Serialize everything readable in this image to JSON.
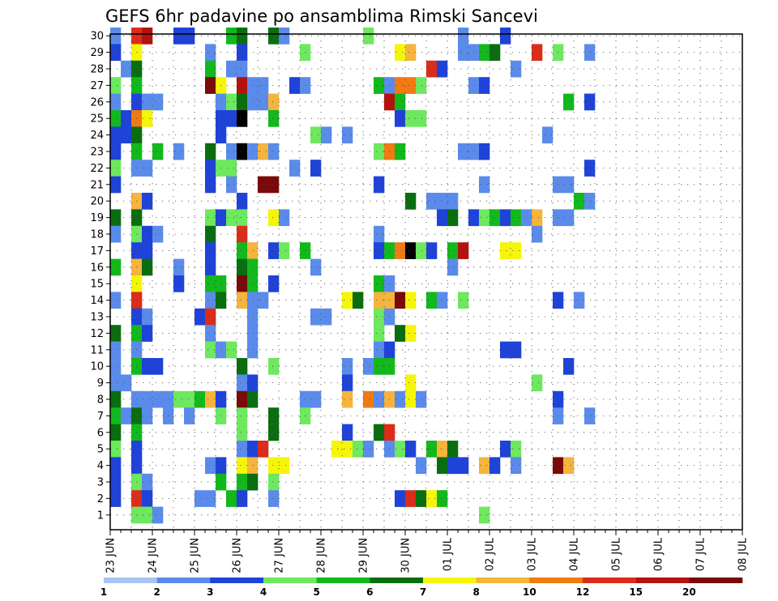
{
  "chart_data": {
    "type": "heatmap",
    "title": "GEFS 6hr padavine po ansamblima Rimski Sancevi",
    "xlabel": "",
    "ylabel": "",
    "y_ticks": [
      "1",
      "2",
      "3",
      "4",
      "5",
      "6",
      "7",
      "8",
      "9",
      "10",
      "11",
      "12",
      "13",
      "14",
      "15",
      "16",
      "17",
      "18",
      "19",
      "20",
      "21",
      "22",
      "23",
      "24",
      "25",
      "26",
      "27",
      "28",
      "29",
      "30"
    ],
    "x_ticks": [
      "23 JUN",
      "24 JUN",
      "25 JUN",
      "26 JUN",
      "27 JUN",
      "28 JUN",
      "29 JUN",
      "30 JUN",
      "01 JUL",
      "02 JUL",
      "03 JUL",
      "04 JUL",
      "05 JUL",
      "06 JUL",
      "07 JUL",
      "08 JUL"
    ],
    "time_step": "6hr",
    "ensemble_members": 30,
    "grid": true,
    "legend_position": "bottom",
    "colorbar": {
      "labels": [
        "1",
        "2",
        "3",
        "4",
        "5",
        "6",
        "7",
        "8",
        "10",
        "12",
        "15",
        "20"
      ],
      "colors": [
        "#a9c4f2",
        "#5b8bea",
        "#1f43d8",
        "#6ee85e",
        "#12b81c",
        "#0a6e10",
        "#f5f50a",
        "#f5b43c",
        "#f07a14",
        "#dc2c1a",
        "#b4120e",
        "#7a0a0a"
      ]
    },
    "cells": [
      [
        30,
        0,
        1
      ],
      [
        30,
        2,
        9
      ],
      [
        30,
        3,
        10
      ],
      [
        30,
        6,
        2
      ],
      [
        30,
        7,
        2
      ],
      [
        30,
        11,
        4
      ],
      [
        30,
        12,
        5
      ],
      [
        30,
        15,
        5
      ],
      [
        30,
        16,
        1
      ],
      [
        30,
        24,
        3
      ],
      [
        30,
        33,
        1
      ],
      [
        30,
        37,
        2
      ],
      [
        29,
        0,
        2
      ],
      [
        29,
        2,
        6
      ],
      [
        29,
        9,
        1
      ],
      [
        29,
        12,
        2
      ],
      [
        29,
        18,
        3
      ],
      [
        29,
        27,
        6
      ],
      [
        29,
        28,
        7
      ],
      [
        29,
        33,
        1
      ],
      [
        29,
        34,
        1
      ],
      [
        29,
        35,
        4
      ],
      [
        29,
        36,
        5
      ],
      [
        29,
        40,
        9
      ],
      [
        29,
        42,
        3
      ],
      [
        29,
        45,
        1
      ],
      [
        28,
        1,
        1
      ],
      [
        28,
        2,
        5
      ],
      [
        28,
        9,
        4
      ],
      [
        28,
        11,
        1
      ],
      [
        28,
        12,
        1
      ],
      [
        28,
        30,
        9
      ],
      [
        28,
        31,
        2
      ],
      [
        28,
        38,
        1
      ],
      [
        27,
        0,
        3
      ],
      [
        27,
        2,
        4
      ],
      [
        27,
        9,
        11
      ],
      [
        27,
        10,
        6
      ],
      [
        27,
        12,
        10
      ],
      [
        27,
        13,
        1
      ],
      [
        27,
        14,
        1
      ],
      [
        27,
        17,
        2
      ],
      [
        27,
        18,
        1
      ],
      [
        27,
        25,
        4
      ],
      [
        27,
        26,
        1
      ],
      [
        27,
        27,
        8
      ],
      [
        27,
        28,
        8
      ],
      [
        27,
        29,
        3
      ],
      [
        27,
        34,
        1
      ],
      [
        27,
        35,
        2
      ],
      [
        26,
        0,
        1
      ],
      [
        26,
        2,
        2
      ],
      [
        26,
        3,
        1
      ],
      [
        26,
        4,
        1
      ],
      [
        26,
        10,
        1
      ],
      [
        26,
        11,
        3
      ],
      [
        26,
        12,
        5
      ],
      [
        26,
        13,
        1
      ],
      [
        26,
        14,
        1
      ],
      [
        26,
        15,
        7
      ],
      [
        26,
        26,
        10
      ],
      [
        26,
        27,
        4
      ],
      [
        26,
        43,
        4
      ],
      [
        26,
        45,
        2
      ],
      [
        25,
        0,
        4
      ],
      [
        25,
        1,
        2
      ],
      [
        25,
        2,
        8
      ],
      [
        25,
        3,
        6
      ],
      [
        25,
        10,
        2
      ],
      [
        25,
        11,
        2
      ],
      [
        25,
        12,
        12
      ],
      [
        25,
        15,
        4
      ],
      [
        25,
        27,
        2
      ],
      [
        25,
        28,
        3
      ],
      [
        25,
        29,
        3
      ],
      [
        24,
        0,
        2
      ],
      [
        24,
        1,
        2
      ],
      [
        24,
        2,
        5
      ],
      [
        24,
        10,
        2
      ],
      [
        24,
        19,
        3
      ],
      [
        24,
        20,
        1
      ],
      [
        24,
        22,
        1
      ],
      [
        24,
        41,
        1
      ],
      [
        23,
        0,
        2
      ],
      [
        23,
        2,
        4
      ],
      [
        23,
        4,
        4
      ],
      [
        23,
        6,
        1
      ],
      [
        23,
        9,
        5
      ],
      [
        23,
        11,
        1
      ],
      [
        23,
        12,
        12
      ],
      [
        23,
        13,
        1
      ],
      [
        23,
        14,
        7
      ],
      [
        23,
        15,
        1
      ],
      [
        23,
        25,
        3
      ],
      [
        23,
        26,
        8
      ],
      [
        23,
        27,
        4
      ],
      [
        23,
        33,
        1
      ],
      [
        23,
        34,
        1
      ],
      [
        23,
        35,
        2
      ],
      [
        22,
        0,
        3
      ],
      [
        22,
        2,
        1
      ],
      [
        22,
        3,
        1
      ],
      [
        22,
        9,
        2
      ],
      [
        22,
        10,
        3
      ],
      [
        22,
        11,
        3
      ],
      [
        22,
        17,
        1
      ],
      [
        22,
        19,
        2
      ],
      [
        22,
        45,
        2
      ],
      [
        21,
        0,
        2
      ],
      [
        21,
        9,
        2
      ],
      [
        21,
        11,
        1
      ],
      [
        21,
        14,
        11
      ],
      [
        21,
        15,
        11
      ],
      [
        21,
        25,
        2
      ],
      [
        21,
        35,
        1
      ],
      [
        21,
        42,
        1
      ],
      [
        21,
        43,
        1
      ],
      [
        20,
        2,
        7
      ],
      [
        20,
        3,
        2
      ],
      [
        20,
        12,
        2
      ],
      [
        20,
        28,
        5
      ],
      [
        20,
        30,
        1
      ],
      [
        20,
        31,
        1
      ],
      [
        20,
        32,
        1
      ],
      [
        20,
        44,
        4
      ],
      [
        20,
        45,
        1
      ],
      [
        19,
        0,
        5
      ],
      [
        19,
        2,
        5
      ],
      [
        19,
        9,
        3
      ],
      [
        19,
        10,
        2
      ],
      [
        19,
        11,
        3
      ],
      [
        19,
        12,
        3
      ],
      [
        19,
        15,
        6
      ],
      [
        19,
        16,
        1
      ],
      [
        19,
        31,
        2
      ],
      [
        19,
        32,
        5
      ],
      [
        19,
        34,
        2
      ],
      [
        19,
        35,
        3
      ],
      [
        19,
        36,
        4
      ],
      [
        19,
        37,
        2
      ],
      [
        19,
        38,
        4
      ],
      [
        19,
        39,
        1
      ],
      [
        19,
        40,
        7
      ],
      [
        19,
        42,
        1
      ],
      [
        19,
        43,
        1
      ],
      [
        18,
        0,
        1
      ],
      [
        18,
        2,
        3
      ],
      [
        18,
        3,
        2
      ],
      [
        18,
        4,
        1
      ],
      [
        18,
        9,
        5
      ],
      [
        18,
        12,
        9
      ],
      [
        18,
        25,
        1
      ],
      [
        18,
        40,
        1
      ],
      [
        17,
        2,
        2
      ],
      [
        17,
        3,
        2
      ],
      [
        17,
        9,
        2
      ],
      [
        17,
        12,
        4
      ],
      [
        17,
        13,
        7
      ],
      [
        17,
        15,
        2
      ],
      [
        17,
        16,
        3
      ],
      [
        17,
        18,
        4
      ],
      [
        17,
        25,
        2
      ],
      [
        17,
        26,
        4
      ],
      [
        17,
        27,
        8
      ],
      [
        17,
        28,
        12
      ],
      [
        17,
        29,
        3
      ],
      [
        17,
        30,
        2
      ],
      [
        17,
        32,
        4
      ],
      [
        17,
        33,
        10
      ],
      [
        17,
        37,
        6
      ],
      [
        17,
        38,
        6
      ],
      [
        16,
        0,
        4
      ],
      [
        16,
        2,
        7
      ],
      [
        16,
        3,
        5
      ],
      [
        16,
        6,
        1
      ],
      [
        16,
        9,
        2
      ],
      [
        16,
        12,
        5
      ],
      [
        16,
        13,
        4
      ],
      [
        16,
        19,
        1
      ],
      [
        16,
        32,
        1
      ],
      [
        15,
        2,
        6
      ],
      [
        15,
        6,
        2
      ],
      [
        15,
        9,
        4
      ],
      [
        15,
        10,
        4
      ],
      [
        15,
        12,
        11
      ],
      [
        15,
        13,
        4
      ],
      [
        15,
        15,
        2
      ],
      [
        15,
        25,
        4
      ],
      [
        15,
        26,
        1
      ],
      [
        14,
        0,
        1
      ],
      [
        14,
        2,
        9
      ],
      [
        14,
        9,
        1
      ],
      [
        14,
        10,
        5
      ],
      [
        14,
        12,
        7
      ],
      [
        14,
        13,
        1
      ],
      [
        14,
        14,
        1
      ],
      [
        14,
        22,
        6
      ],
      [
        14,
        23,
        5
      ],
      [
        14,
        25,
        7
      ],
      [
        14,
        26,
        7
      ],
      [
        14,
        27,
        11
      ],
      [
        14,
        28,
        6
      ],
      [
        14,
        30,
        4
      ],
      [
        14,
        31,
        1
      ],
      [
        14,
        33,
        3
      ],
      [
        14,
        42,
        2
      ],
      [
        14,
        44,
        1
      ],
      [
        13,
        2,
        2
      ],
      [
        13,
        3,
        1
      ],
      [
        13,
        8,
        2
      ],
      [
        13,
        9,
        9
      ],
      [
        13,
        13,
        1
      ],
      [
        13,
        19,
        1
      ],
      [
        13,
        20,
        1
      ],
      [
        13,
        25,
        3
      ],
      [
        13,
        26,
        1
      ],
      [
        12,
        0,
        5
      ],
      [
        12,
        2,
        4
      ],
      [
        12,
        3,
        2
      ],
      [
        12,
        9,
        1
      ],
      [
        12,
        13,
        1
      ],
      [
        12,
        25,
        3
      ],
      [
        12,
        27,
        5
      ],
      [
        12,
        28,
        6
      ],
      [
        11,
        0,
        1
      ],
      [
        11,
        2,
        1
      ],
      [
        11,
        9,
        3
      ],
      [
        11,
        10,
        1
      ],
      [
        11,
        11,
        3
      ],
      [
        11,
        13,
        1
      ],
      [
        11,
        25,
        1
      ],
      [
        11,
        26,
        2
      ],
      [
        11,
        37,
        2
      ],
      [
        11,
        38,
        2
      ],
      [
        10,
        0,
        1
      ],
      [
        10,
        2,
        4
      ],
      [
        10,
        3,
        2
      ],
      [
        10,
        4,
        2
      ],
      [
        10,
        12,
        5
      ],
      [
        10,
        15,
        3
      ],
      [
        10,
        22,
        1
      ],
      [
        10,
        24,
        1
      ],
      [
        10,
        25,
        4
      ],
      [
        10,
        26,
        4
      ],
      [
        10,
        43,
        2
      ],
      [
        9,
        0,
        1
      ],
      [
        9,
        1,
        1
      ],
      [
        9,
        12,
        1
      ],
      [
        9,
        13,
        2
      ],
      [
        9,
        22,
        2
      ],
      [
        9,
        28,
        6
      ],
      [
        9,
        40,
        3
      ],
      [
        8,
        0,
        5
      ],
      [
        8,
        2,
        1
      ],
      [
        8,
        3,
        1
      ],
      [
        8,
        4,
        1
      ],
      [
        8,
        5,
        1
      ],
      [
        8,
        6,
        3
      ],
      [
        8,
        7,
        3
      ],
      [
        8,
        8,
        4
      ],
      [
        8,
        9,
        7
      ],
      [
        8,
        10,
        2
      ],
      [
        8,
        12,
        11
      ],
      [
        8,
        13,
        5
      ],
      [
        8,
        18,
        1
      ],
      [
        8,
        19,
        1
      ],
      [
        8,
        22,
        7
      ],
      [
        8,
        24,
        8
      ],
      [
        8,
        25,
        1
      ],
      [
        8,
        26,
        7
      ],
      [
        8,
        27,
        1
      ],
      [
        8,
        28,
        6
      ],
      [
        8,
        29,
        1
      ],
      [
        8,
        42,
        2
      ],
      [
        7,
        0,
        4
      ],
      [
        7,
        1,
        1
      ],
      [
        7,
        2,
        5
      ],
      [
        7,
        3,
        1
      ],
      [
        7,
        5,
        1
      ],
      [
        7,
        7,
        1
      ],
      [
        7,
        10,
        3
      ],
      [
        7,
        12,
        3
      ],
      [
        7,
        15,
        5
      ],
      [
        7,
        18,
        3
      ],
      [
        7,
        42,
        1
      ],
      [
        7,
        45,
        1
      ],
      [
        6,
        0,
        5
      ],
      [
        6,
        2,
        4
      ],
      [
        6,
        12,
        3
      ],
      [
        6,
        15,
        5
      ],
      [
        6,
        22,
        2
      ],
      [
        6,
        25,
        5
      ],
      [
        6,
        26,
        9
      ],
      [
        5,
        0,
        3
      ],
      [
        5,
        2,
        2
      ],
      [
        5,
        12,
        1
      ],
      [
        5,
        13,
        2
      ],
      [
        5,
        14,
        9
      ],
      [
        5,
        21,
        6
      ],
      [
        5,
        22,
        6
      ],
      [
        5,
        23,
        3
      ],
      [
        5,
        24,
        1
      ],
      [
        5,
        26,
        1
      ],
      [
        5,
        27,
        3
      ],
      [
        5,
        28,
        2
      ],
      [
        5,
        30,
        4
      ],
      [
        5,
        31,
        7
      ],
      [
        5,
        32,
        5
      ],
      [
        5,
        37,
        2
      ],
      [
        5,
        38,
        3
      ],
      [
        4,
        0,
        2
      ],
      [
        4,
        2,
        2
      ],
      [
        4,
        9,
        1
      ],
      [
        4,
        10,
        2
      ],
      [
        4,
        12,
        6
      ],
      [
        4,
        13,
        7
      ],
      [
        4,
        15,
        6
      ],
      [
        4,
        16,
        6
      ],
      [
        4,
        29,
        1
      ],
      [
        4,
        31,
        5
      ],
      [
        4,
        32,
        2
      ],
      [
        4,
        33,
        2
      ],
      [
        4,
        35,
        7
      ],
      [
        4,
        36,
        2
      ],
      [
        4,
        38,
        1
      ],
      [
        4,
        42,
        11
      ],
      [
        4,
        43,
        7
      ],
      [
        3,
        0,
        2
      ],
      [
        3,
        2,
        3
      ],
      [
        3,
        3,
        1
      ],
      [
        3,
        10,
        4
      ],
      [
        3,
        12,
        4
      ],
      [
        3,
        13,
        5
      ],
      [
        3,
        15,
        3
      ],
      [
        2,
        0,
        2
      ],
      [
        2,
        2,
        9
      ],
      [
        2,
        3,
        2
      ],
      [
        2,
        8,
        1
      ],
      [
        2,
        9,
        1
      ],
      [
        2,
        11,
        4
      ],
      [
        2,
        12,
        2
      ],
      [
        2,
        15,
        1
      ],
      [
        2,
        27,
        2
      ],
      [
        2,
        28,
        9
      ],
      [
        2,
        29,
        5
      ],
      [
        2,
        30,
        6
      ],
      [
        2,
        31,
        4
      ],
      [
        1,
        2,
        3
      ],
      [
        1,
        3,
        3
      ],
      [
        1,
        4,
        1
      ],
      [
        1,
        35,
        3
      ]
    ]
  }
}
